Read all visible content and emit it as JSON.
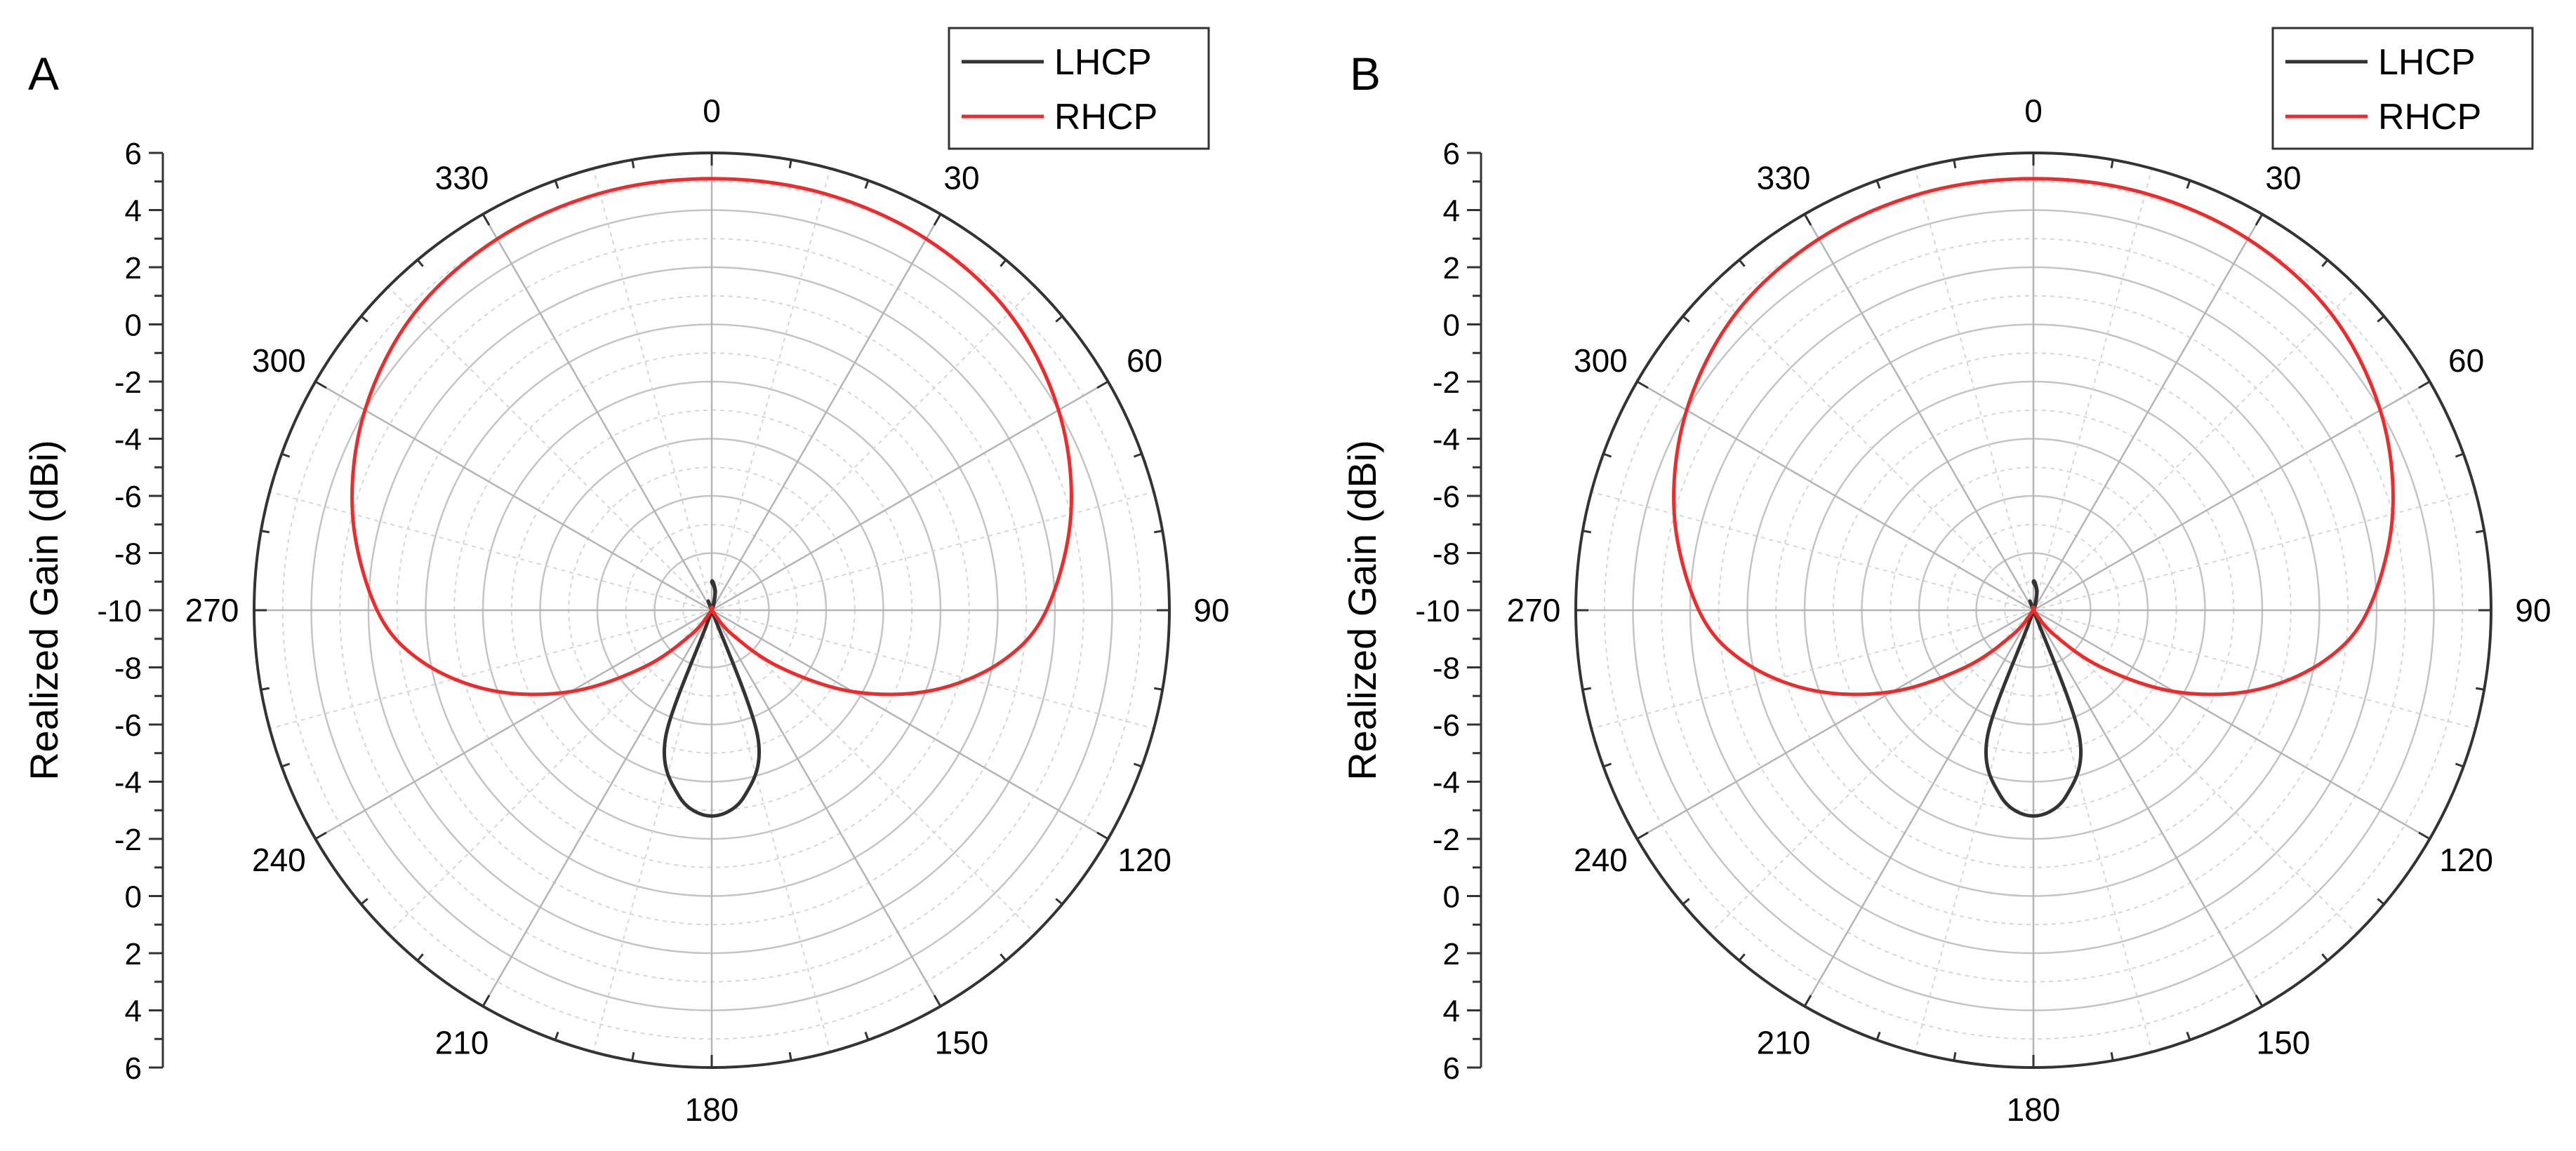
{
  "figure": {
    "panels": [
      "A",
      "B"
    ]
  },
  "chart_data": [
    {
      "type": "polar-line",
      "panel_label": "A",
      "ylabel": "Realized Gain (dBi)",
      "radial_axis": {
        "min": -10,
        "max": 6,
        "ticks": [
          -10,
          -8,
          -6,
          -4,
          -2,
          0,
          2,
          4,
          6
        ]
      },
      "angular_axis": {
        "unit": "deg",
        "direction": "clockwise",
        "zero": "top",
        "ticks": [
          0,
          30,
          60,
          90,
          120,
          150,
          180,
          210,
          240,
          270,
          300,
          330
        ]
      },
      "grid": true,
      "legend": {
        "position": "top-right",
        "entries": [
          "LHCP",
          "RHCP"
        ]
      },
      "series": [
        {
          "name": "LHCP",
          "color": "#333333",
          "theta": [
            0,
            10,
            20,
            30,
            150,
            160,
            170,
            180,
            190,
            200,
            210
          ],
          "values": [
            -9,
            -9.3,
            -9.8,
            -10,
            -10,
            -5.3,
            -3.4,
            -2.8,
            -3.4,
            -5.3,
            -10
          ]
        },
        {
          "name": "RHCP",
          "color": "#ee2a2a",
          "theta": [
            0,
            15,
            30,
            45,
            60,
            75,
            90,
            100,
            110,
            120,
            130,
            140,
            150,
            210,
            220,
            230,
            240,
            250,
            260,
            270,
            285,
            300,
            315,
            330,
            345
          ],
          "values": [
            5.1,
            5.1,
            5.0,
            4.7,
            4.0,
            3.0,
            1.7,
            0.3,
            -1.8,
            -4.3,
            -6.9,
            -8.9,
            -10,
            -10,
            -8.9,
            -6.9,
            -4.3,
            -1.8,
            0.3,
            1.7,
            3.0,
            4.0,
            4.7,
            5.0,
            5.1
          ]
        }
      ]
    },
    {
      "type": "polar-line",
      "panel_label": "B",
      "ylabel": "Realized Gain (dBi)",
      "radial_axis": {
        "min": -10,
        "max": 6,
        "ticks": [
          -10,
          -8,
          -6,
          -4,
          -2,
          0,
          2,
          4,
          6
        ]
      },
      "angular_axis": {
        "unit": "deg",
        "direction": "clockwise",
        "zero": "top",
        "ticks": [
          0,
          30,
          60,
          90,
          120,
          150,
          180,
          210,
          240,
          270,
          300,
          330
        ]
      },
      "grid": true,
      "legend": {
        "position": "top-right",
        "entries": [
          "LHCP",
          "RHCP"
        ]
      },
      "series": [
        {
          "name": "LHCP",
          "color": "#333333",
          "theta": [
            0,
            10,
            20,
            30,
            150,
            160,
            170,
            180,
            190,
            200,
            210
          ],
          "values": [
            -9,
            -9.3,
            -9.8,
            -10,
            -10,
            -5.3,
            -3.4,
            -2.8,
            -3.4,
            -5.3,
            -10
          ]
        },
        {
          "name": "RHCP",
          "color": "#ee2a2a",
          "theta": [
            0,
            15,
            30,
            45,
            60,
            75,
            90,
            100,
            110,
            120,
            130,
            140,
            150,
            210,
            220,
            230,
            240,
            250,
            260,
            270,
            285,
            300,
            315,
            330,
            345
          ],
          "values": [
            5.1,
            5.1,
            5.0,
            4.7,
            4.0,
            3.0,
            1.7,
            0.3,
            -1.8,
            -4.3,
            -6.9,
            -8.9,
            -10,
            -10,
            -8.9,
            -6.9,
            -4.3,
            -1.8,
            0.3,
            1.7,
            3.0,
            4.0,
            4.7,
            5.0,
            5.1
          ]
        }
      ]
    }
  ]
}
